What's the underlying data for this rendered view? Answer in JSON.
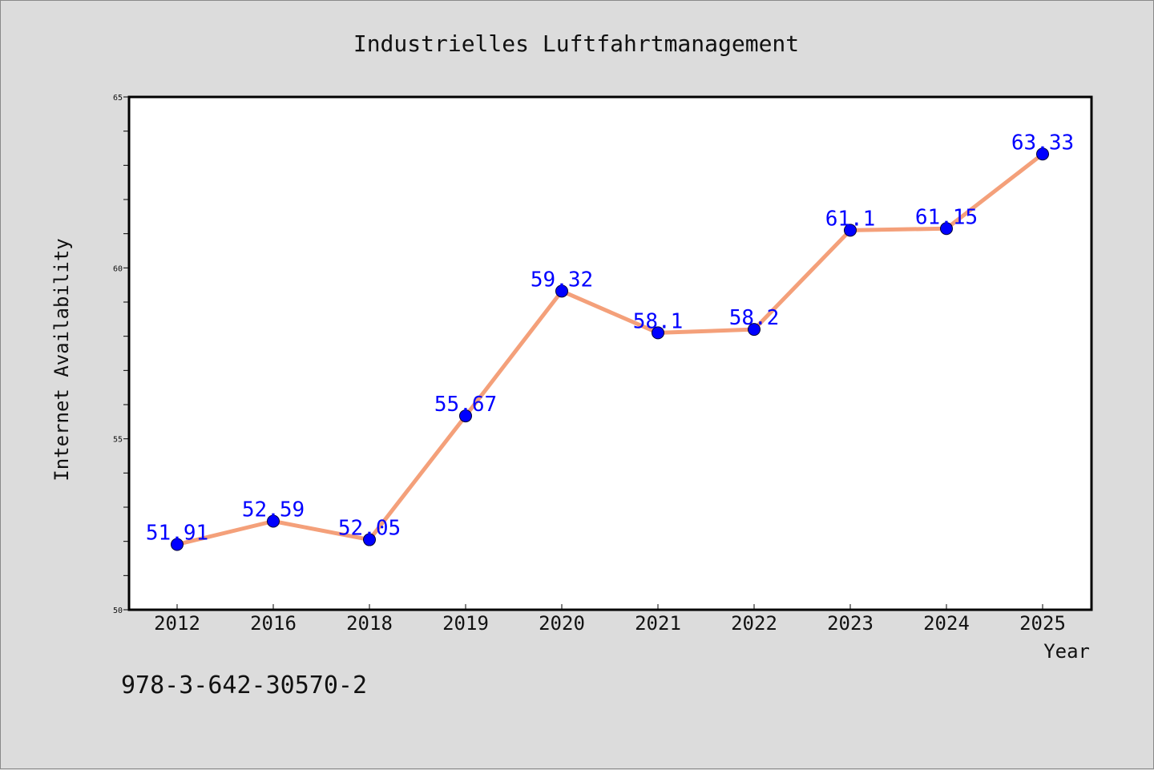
{
  "chart_data": {
    "type": "line",
    "title": "Industrielles Luftfahrtmanagement",
    "xlabel": "Year",
    "ylabel": "Internet Availability",
    "categories": [
      "2012",
      "2016",
      "2018",
      "2019",
      "2020",
      "2021",
      "2022",
      "2023",
      "2024",
      "2025"
    ],
    "values": [
      51.91,
      52.59,
      52.05,
      55.67,
      59.32,
      58.1,
      58.2,
      61.1,
      61.15,
      63.33
    ],
    "data_labels": [
      "51.91",
      "52.59",
      "52.05",
      "55.67",
      "59.32",
      "58.1",
      "58.2",
      "61.1",
      "61.15",
      "63.33"
    ],
    "ylim": [
      50,
      65
    ],
    "yticks": [
      "50",
      "55",
      "60",
      "65"
    ],
    "grid": false,
    "line_color": "#f4a07a",
    "marker_color": "#0000ff",
    "label_color": "#0000ff"
  },
  "footer": {
    "isbn": "978-3-642-30570-2"
  }
}
